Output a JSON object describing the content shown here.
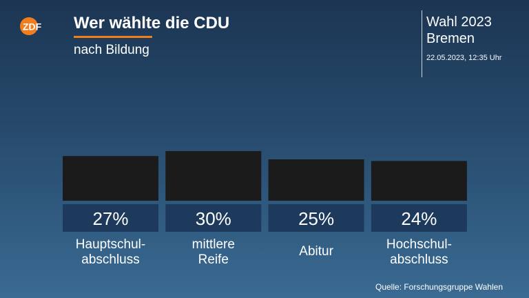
{
  "header": {
    "logo_text": "ZDF",
    "title": "Wer wählte die CDU",
    "subtitle": "nach Bildung",
    "election": "Wahl 2023",
    "region": "Bremen",
    "timestamp": "22.05.2023, 12:35 Uhr"
  },
  "colors": {
    "accent": "#f07d1e",
    "bar": "#1b1b1b",
    "label_box": "#1d3a5c"
  },
  "chart_data": {
    "type": "bar",
    "title": "Wer wählte die CDU",
    "subtitle": "nach Bildung",
    "categories": [
      [
        "Hauptschul-",
        "abschluss"
      ],
      [
        "mittlere",
        "Reife"
      ],
      [
        "Abitur"
      ],
      [
        "Hochschul-",
        "abschluss"
      ]
    ],
    "values": [
      27,
      30,
      25,
      24
    ],
    "value_labels": [
      "27%",
      "30%",
      "25%",
      "24%"
    ],
    "unit": "%",
    "grid": false,
    "legend": "none"
  },
  "footer": {
    "source": "Quelle: Forschungsgruppe Wahlen"
  }
}
